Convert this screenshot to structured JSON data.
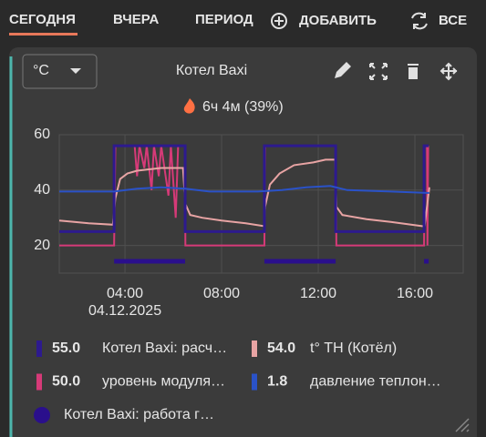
{
  "tabs": [
    "СЕГОДНЯ",
    "ВЧЕРА",
    "ПЕРИОД"
  ],
  "actions": [
    "ДОБАВИТЬ",
    "ВСЕ"
  ],
  "card": {
    "unit": "°C",
    "title": "Котел Baxi",
    "summary": "6ч 4м (39%)"
  },
  "chart_data": {
    "type": "line",
    "xlim": [
      1.28,
      18
    ],
    "ylim": [
      10,
      60
    ],
    "xticks": [
      {
        "value": 4,
        "label": "04:00"
      },
      {
        "value": 8,
        "label": "08:00"
      },
      {
        "value": 12,
        "label": "12:00"
      },
      {
        "value": 16,
        "label": "16:00"
      }
    ],
    "date_label": "04.12.2025",
    "yticks": [
      20,
      40,
      60
    ],
    "grid": true,
    "series": [
      {
        "name": "Котел Baxi: расч…",
        "current": "55.0",
        "color": "#2d1a8e",
        "x": [
          1.28,
          3.55,
          3.55,
          6.49,
          6.49,
          9.77,
          9.77,
          12.72,
          12.72,
          16.38,
          16.38,
          16.57
        ],
        "values": [
          25,
          25,
          56,
          56,
          25,
          25,
          56,
          56,
          25,
          25,
          56,
          56
        ]
      },
      {
        "name": "t° ТН (Котёл)",
        "current": "54.0",
        "color": "#e8a4a4",
        "x": [
          1.28,
          1.9,
          2.5,
          3.5,
          3.6,
          3.8,
          4.1,
          4.5,
          5.0,
          5.5,
          6.4,
          6.5,
          6.7,
          7.2,
          8,
          9,
          9.75,
          9.8,
          10.0,
          10.4,
          11,
          11.8,
          12.3,
          12.7,
          12.75,
          13,
          14,
          15,
          16.3,
          16.4,
          16.6
        ],
        "values": [
          29,
          28.5,
          28,
          27.5,
          37,
          44,
          46,
          47,
          47.5,
          48,
          48,
          35,
          31,
          30,
          29,
          28,
          27,
          34,
          42,
          46,
          49,
          50,
          51,
          51,
          34,
          31,
          29.5,
          28.5,
          27,
          27,
          41
        ]
      },
      {
        "name": "уровень модуля…",
        "current": "50.0",
        "color": "#d63a78",
        "x": [
          1.28,
          3.55,
          3.6,
          4.4,
          4.5,
          4.6,
          4.8,
          4.9,
          5.1,
          5.2,
          5.4,
          5.5,
          5.8,
          5.9,
          6.1,
          6.2,
          6.49,
          6.5,
          9.77,
          9.8,
          12.72,
          12.75,
          16.38,
          16.4,
          16.5,
          16.52,
          16.55
        ],
        "values": [
          20,
          20,
          56,
          56,
          45,
          56,
          48,
          56,
          40,
          56,
          45,
          56,
          38,
          56,
          30,
          56,
          56,
          20,
          20,
          56,
          56,
          20,
          20,
          56,
          56,
          20,
          56
        ]
      },
      {
        "name": "давление теплон…",
        "current": "1.8",
        "color": "#2a52c8",
        "x": [
          1.28,
          3.55,
          4.5,
          5.5,
          6.5,
          7.5,
          9.5,
          10.5,
          11.5,
          12.5,
          13.2,
          15,
          16.5,
          16.6
        ],
        "values": [
          39.5,
          39.5,
          40.5,
          41,
          40.5,
          39.5,
          39.5,
          40,
          41,
          41.5,
          40,
          39.5,
          39,
          39
        ]
      },
      {
        "name": "Котел Baxi: работа г…",
        "color": "#2a0f8c",
        "segments": [
          [
            3.55,
            6.49
          ],
          [
            9.77,
            12.72
          ],
          [
            16.38,
            16.57
          ]
        ]
      }
    ]
  }
}
